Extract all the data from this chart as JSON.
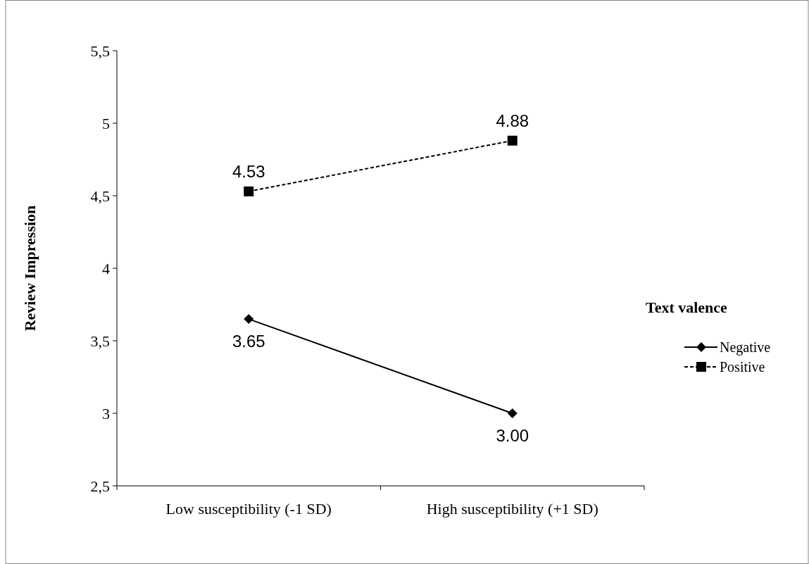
{
  "chart_data": {
    "type": "line",
    "ylabel": "Review Impression",
    "legend_title": "Text valence",
    "legend": "right",
    "grid": false,
    "categories": [
      "Low susceptibility (-1 SD)",
      "High susceptibility (+1 SD)"
    ],
    "ylim": [
      2.5,
      5.5
    ],
    "yticks": [
      {
        "value": 2.5,
        "label": "2,5"
      },
      3,
      {
        "value": 3.5,
        "label": "3,5"
      },
      4,
      {
        "value": 4.5,
        "label": "4,5"
      },
      5,
      {
        "value": 5.5,
        "label": "5,5"
      }
    ],
    "series": [
      {
        "name": "Negative",
        "color": "#000000",
        "values": [
          3.65,
          3.0
        ],
        "marker": "diamond",
        "line_style": "solid",
        "value_labels": [
          "3.65",
          "3.00"
        ]
      },
      {
        "name": "Positive",
        "color": "#000000",
        "values": [
          4.53,
          4.88
        ],
        "marker": "square",
        "line_style": "dashed",
        "value_labels": [
          "4.53",
          "4.88"
        ]
      }
    ]
  }
}
